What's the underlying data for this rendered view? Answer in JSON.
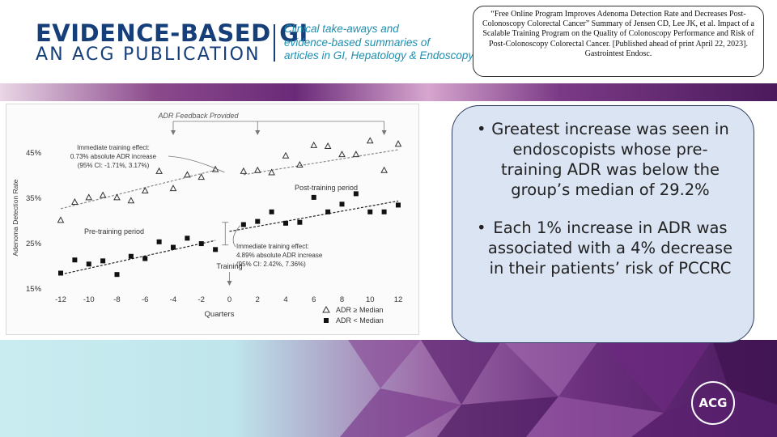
{
  "header": {
    "brand_line1": "EVIDENCE-BASED GI",
    "brand_line2": "AN ACG PUBLICATION",
    "tagline": [
      "Clinical take-aways and",
      "evidence-based summaries of",
      "articles in GI, Hepatology & Endoscopy"
    ],
    "citation": "“Free Online Program Improves Adenoma Detection Rate and Decreases Post- Colonoscopy Colorectal Cancer” Summary of Jensen CD, Lee JK, et al. Impact of a Scalable Training Program on the Quality of Colonoscopy Performance and Risk of Post-Colonoscopy Colorectal Cancer. [Published ahead of print April 22, 2023]. Gastrointest Endosc."
  },
  "bullets": [
    "Greatest increase was seen in endoscopists whose pre-training ADR was below the group’s median of 29.2%",
    "Each 1% increase in ADR was associated with a 4% decrease in their patients’ risk of PCCRC"
  ],
  "logo_text": "ACG",
  "colors": {
    "brand_navy": "#163f7a",
    "tagline_blue": "#1e8fb0",
    "bullet_bg": "#dbe4f3",
    "purple": "#6b2f7e"
  },
  "chart_data": {
    "type": "scatter",
    "xlabel": "Quarters",
    "ylabel": "Adenoma Detection Rate",
    "x_ticks": [
      "-12",
      "-10",
      "-8",
      "-6",
      "-4",
      "-2",
      "0",
      "2",
      "4",
      "6",
      "8",
      "10",
      "12"
    ],
    "y_ticks": [
      "15%",
      "25%",
      "35%",
      "45%"
    ],
    "xlim": [
      -12,
      12
    ],
    "ylim": [
      15,
      48
    ],
    "grid": false,
    "legend_position": "bottom-right",
    "series": [
      {
        "name": "ADR ≥ Median",
        "marker": "open-triangle",
        "points": [
          [
            -12,
            30.0
          ],
          [
            -11,
            34.0
          ],
          [
            -10,
            35.0
          ],
          [
            -9,
            35.5
          ],
          [
            -8,
            35.0
          ],
          [
            -7,
            34.3
          ],
          [
            -6,
            36.5
          ],
          [
            -5,
            40.8
          ],
          [
            -4,
            37.0
          ],
          [
            -3,
            40.0
          ],
          [
            -2,
            39.5
          ],
          [
            -1,
            41.2
          ],
          [
            1,
            40.8
          ],
          [
            2,
            41.0
          ],
          [
            3,
            40.5
          ],
          [
            4,
            44.2
          ],
          [
            5,
            42.2
          ],
          [
            6,
            46.5
          ],
          [
            7,
            46.3
          ],
          [
            8,
            44.5
          ],
          [
            9,
            44.5
          ],
          [
            10,
            47.5
          ],
          [
            11,
            41.0
          ],
          [
            12,
            46.8
          ]
        ],
        "trend_pre": [
          [
            -12,
            32.5
          ],
          [
            -1,
            41.0
          ]
        ],
        "trend_post": [
          [
            1,
            40.0
          ],
          [
            12,
            45.5
          ]
        ]
      },
      {
        "name": "ADR < Median",
        "marker": "filled-square",
        "points": [
          [
            -12,
            18.3
          ],
          [
            -11,
            21.2
          ],
          [
            -10,
            20.3
          ],
          [
            -9,
            21.0
          ],
          [
            -8,
            18.0
          ],
          [
            -7,
            22.0
          ],
          [
            -6,
            21.5
          ],
          [
            -5,
            25.2
          ],
          [
            -4,
            24.0
          ],
          [
            -3,
            26.0
          ],
          [
            -2,
            24.8
          ],
          [
            -1,
            23.5
          ],
          [
            1,
            29.0
          ],
          [
            2,
            29.7
          ],
          [
            3,
            31.8
          ],
          [
            4,
            29.3
          ],
          [
            5,
            29.5
          ],
          [
            6,
            35.0
          ],
          [
            7,
            31.8
          ],
          [
            8,
            33.5
          ],
          [
            9,
            35.8
          ],
          [
            10,
            31.8
          ],
          [
            11,
            31.8
          ],
          [
            12,
            33.3
          ]
        ],
        "trend_pre": [
          [
            -12,
            18.0
          ],
          [
            -1,
            25.5
          ]
        ],
        "trend_post": [
          [
            0,
            27.5
          ],
          [
            12,
            34.2
          ]
        ]
      }
    ],
    "annotations": {
      "feedback_label": "ADR Feedback Provided",
      "feedback_quarters": [
        -4,
        2,
        11
      ],
      "upper_effect": [
        "Immediate training effect:",
        "0.73% absolute ADR increase",
        "(95% CI: -1.71%, 3.17%)"
      ],
      "lower_effect": [
        "Immediate training effect:",
        "4.89% absolute ADR increase",
        "(95% CI: 2.42%, 7.36%)"
      ],
      "post_label": "Post-training period",
      "pre_label": "Pre-training period",
      "training_label": "Training"
    }
  }
}
